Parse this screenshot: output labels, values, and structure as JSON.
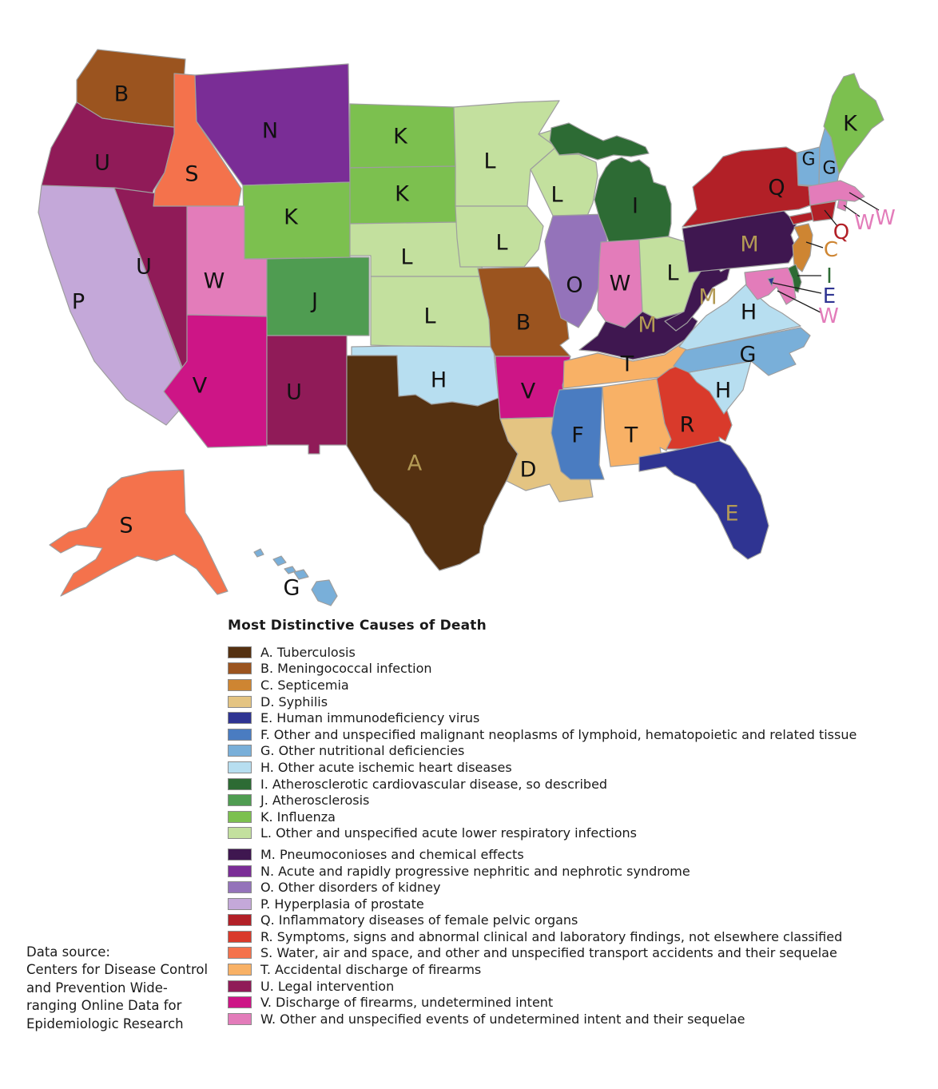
{
  "legend": {
    "title": "Most Distinctive Causes of Death",
    "items": [
      {
        "key": "A",
        "label": "A. Tuberculosis",
        "color": "#553111"
      },
      {
        "key": "B",
        "label": "B. Meningococcal infection",
        "color": "#9B541F"
      },
      {
        "key": "C",
        "label": "C. Septicemia",
        "color": "#CE8532"
      },
      {
        "key": "D",
        "label": "D. Syphilis",
        "color": "#E4C482"
      },
      {
        "key": "E",
        "label": "E. Human immunodeficiency virus",
        "color": "#2F3492"
      },
      {
        "key": "F",
        "label": "F. Other and unspecified malignant neoplasms of lymphoid, hematopoietic and related tissue",
        "color": "#4A7CC1"
      },
      {
        "key": "G",
        "label": "G. Other nutritional deficiencies",
        "color": "#79AFD9"
      },
      {
        "key": "H",
        "label": "H. Other acute ischemic heart diseases",
        "color": "#B7DEF0"
      },
      {
        "key": "I",
        "label": "I. Atherosclerotic cardiovascular disease, so described",
        "color": "#2D6B34"
      },
      {
        "key": "J",
        "label": "J. Atherosclerosis",
        "color": "#4F9C51"
      },
      {
        "key": "K",
        "label": "K. Influenza",
        "color": "#7CC04F"
      },
      {
        "key": "L",
        "label": "L. Other and unspecified acute lower respiratory infections",
        "color": "#C3E09E"
      },
      {
        "key": "M",
        "label": "M. Pneumoconioses and chemical effects",
        "color": "#3F1750"
      },
      {
        "key": "N",
        "label": "N. Acute and rapidly progressive nephritic and nephrotic syndrome",
        "color": "#7A2D96"
      },
      {
        "key": "O",
        "label": "O. Other disorders of kidney",
        "color": "#9473BA"
      },
      {
        "key": "P",
        "label": "P. Hyperplasia of prostate",
        "color": "#C4A8D9"
      },
      {
        "key": "Q",
        "label": "Q. Inflammatory diseases of female pelvic organs",
        "color": "#B22027"
      },
      {
        "key": "R",
        "label": "R. Symptoms, signs and abnormal clinical and laboratory findings, not elsewhere classified",
        "color": "#D93A2B"
      },
      {
        "key": "S",
        "label": "S. Water, air and space, and other and unspecified transport accidents and their sequelae",
        "color": "#F4724C"
      },
      {
        "key": "T",
        "label": "T. Accidental discharge of firearms",
        "color": "#F8B166"
      },
      {
        "key": "U",
        "label": "U. Legal intervention",
        "color": "#901B58"
      },
      {
        "key": "V",
        "label": "V. Discharge of firearms, undetermined intent",
        "color": "#CD1586"
      },
      {
        "key": "W",
        "label": "W. Other and unspecified events of undetermined intent and their sequelae",
        "color": "#E37CBA"
      }
    ],
    "group_break_before": "M"
  },
  "data_source": {
    "lines": [
      "Data source:",
      "Centers for Disease Control",
      "and Prevention Wide-",
      "ranging Online Data for",
      "Epidemiologic Research"
    ]
  },
  "map": {
    "border_color": "#9e9e9e",
    "leader_line_color": "#1a1a1a",
    "label_color": "#111111",
    "gold_label_color": "#B39A55",
    "gold_label_states": [
      "TX",
      "KY",
      "PA",
      "WV",
      "FL"
    ],
    "states": [
      {
        "id": "WA",
        "cause": "B"
      },
      {
        "id": "OR",
        "cause": "U"
      },
      {
        "id": "CA",
        "cause": "P"
      },
      {
        "id": "NV",
        "cause": "U"
      },
      {
        "id": "ID",
        "cause": "S"
      },
      {
        "id": "MT",
        "cause": "N"
      },
      {
        "id": "WY",
        "cause": "K"
      },
      {
        "id": "UT",
        "cause": "W"
      },
      {
        "id": "CO",
        "cause": "J"
      },
      {
        "id": "AZ",
        "cause": "V"
      },
      {
        "id": "NM",
        "cause": "U"
      },
      {
        "id": "ND",
        "cause": "K"
      },
      {
        "id": "SD",
        "cause": "K"
      },
      {
        "id": "NE",
        "cause": "L"
      },
      {
        "id": "KS",
        "cause": "L"
      },
      {
        "id": "OK",
        "cause": "H"
      },
      {
        "id": "TX",
        "cause": "A"
      },
      {
        "id": "MN",
        "cause": "L"
      },
      {
        "id": "IA",
        "cause": "L"
      },
      {
        "id": "MO",
        "cause": "B"
      },
      {
        "id": "AR",
        "cause": "V"
      },
      {
        "id": "LA",
        "cause": "D"
      },
      {
        "id": "WI",
        "cause": "L"
      },
      {
        "id": "IL",
        "cause": "O"
      },
      {
        "id": "MI",
        "cause": "I"
      },
      {
        "id": "IN",
        "cause": "W"
      },
      {
        "id": "OH",
        "cause": "L"
      },
      {
        "id": "KY",
        "cause": "M"
      },
      {
        "id": "TN",
        "cause": "T"
      },
      {
        "id": "MS",
        "cause": "F"
      },
      {
        "id": "AL",
        "cause": "T"
      },
      {
        "id": "GA",
        "cause": "R"
      },
      {
        "id": "FL",
        "cause": "E"
      },
      {
        "id": "SC",
        "cause": "H"
      },
      {
        "id": "NC",
        "cause": "G"
      },
      {
        "id": "VA",
        "cause": "H"
      },
      {
        "id": "WV",
        "cause": "M"
      },
      {
        "id": "PA",
        "cause": "M"
      },
      {
        "id": "NY",
        "cause": "Q"
      },
      {
        "id": "VT",
        "cause": "G"
      },
      {
        "id": "NH",
        "cause": "G"
      },
      {
        "id": "ME",
        "cause": "K"
      },
      {
        "id": "MA",
        "cause": "W"
      },
      {
        "id": "RI",
        "cause": "W"
      },
      {
        "id": "CT",
        "cause": "Q"
      },
      {
        "id": "NJ",
        "cause": "C"
      },
      {
        "id": "DE",
        "cause": "I"
      },
      {
        "id": "MD",
        "cause": "W"
      },
      {
        "id": "DC",
        "cause": "E"
      },
      {
        "id": "AK",
        "cause": "S"
      },
      {
        "id": "HI",
        "cause": "G"
      }
    ],
    "callouts": [
      {
        "state": "MA",
        "letter": "W"
      },
      {
        "state": "RI",
        "letter": "W"
      },
      {
        "state": "CT",
        "letter": "Q"
      },
      {
        "state": "NJ",
        "letter": "C"
      },
      {
        "state": "DE",
        "letter": "I"
      },
      {
        "state": "DC",
        "letter": "E"
      },
      {
        "state": "MD",
        "letter": "W"
      }
    ]
  }
}
